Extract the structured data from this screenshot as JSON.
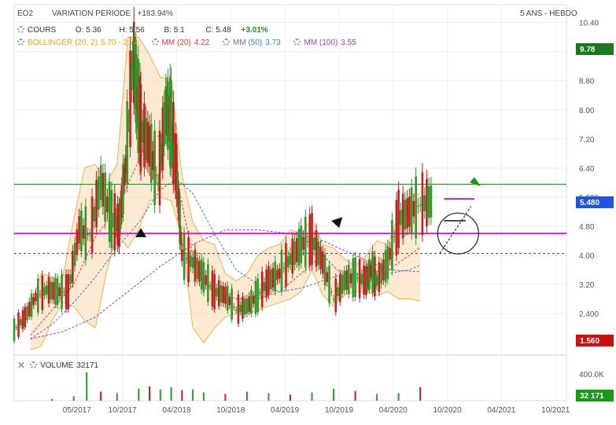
{
  "header": {
    "symbol": "EO2",
    "variation_label": "VARIATION PERIODE : +183.94%",
    "period_label": "5 ANS - HEBDO"
  },
  "legend": {
    "cours": {
      "label": "COURS",
      "open": "O: 5.36",
      "high": "H: 5.56",
      "low": "B: 5.1",
      "close": "C: 5.48",
      "change": "+3.01%"
    },
    "bollinger": {
      "label": "BOLLINGER (20, 2)",
      "values": "5.70 - 2.74",
      "color": "#f0a030"
    },
    "mm20": {
      "label": "MM (20)",
      "value": "4.22",
      "color": "#e04040"
    },
    "mm50": {
      "label": "MM (50)",
      "value": "3.73",
      "color": "#3b7fd0"
    },
    "mm100": {
      "label": "MM (100)",
      "value": "3.55",
      "color": "#a040b0"
    }
  },
  "volume": {
    "label": "VOLUME",
    "value": "32171",
    "axis_label": "400.0K",
    "badge": "32 171"
  },
  "badges": {
    "top": {
      "value": "9.78",
      "color": "#1a7a1a"
    },
    "last": {
      "value": "5.480",
      "color": "#2255dd"
    },
    "bottom": {
      "value": "1.560",
      "color": "#cc1111"
    }
  },
  "chart_data": {
    "type": "candlestick",
    "y_ticks": [
      "10.40",
      "9.60",
      "8.80",
      "8.00",
      "7.20",
      "6.40",
      "5.600",
      "4.80",
      "4.00",
      "3.20",
      "2.400"
    ],
    "y_tick_values": [
      10.4,
      9.6,
      8.8,
      8.0,
      7.2,
      6.4,
      5.6,
      4.8,
      4.0,
      3.2,
      2.4
    ],
    "ylim": [
      1.3,
      10.5
    ],
    "x_ticks": [
      "05/2017",
      "10/2017",
      "04/2018",
      "10/2018",
      "04/2019",
      "10/2019",
      "04/2020",
      "10/2020",
      "04/2021",
      "10/2021"
    ],
    "x_tick_values": [
      2017.33,
      2017.75,
      2018.25,
      2018.75,
      2019.25,
      2019.75,
      2020.25,
      2020.75,
      2021.25,
      2021.75
    ],
    "xlim": [
      2016.75,
      2021.85
    ],
    "close": {
      "x": [
        2016.75,
        2016.85,
        2016.95,
        2017.05,
        2017.15,
        2017.25,
        2017.35,
        2017.45,
        2017.55,
        2017.65,
        2017.72,
        2017.78,
        2017.85,
        2017.88,
        2017.92,
        2018.0,
        2018.08,
        2018.15,
        2018.2,
        2018.25,
        2018.3,
        2018.4,
        2018.5,
        2018.6,
        2018.7,
        2018.8,
        2018.9,
        2019.0,
        2019.1,
        2019.2,
        2019.3,
        2019.4,
        2019.5,
        2019.6,
        2019.7,
        2019.8,
        2019.9,
        2020.0,
        2020.05,
        2020.1,
        2020.2,
        2020.3,
        2020.4,
        2020.5,
        2020.6,
        2020.7,
        2020.75,
        2020.8,
        2020.85,
        2020.9,
        2020.95
      ],
      "y": [
        1.95,
        2.3,
        2.85,
        3.05,
        3.0,
        3.0,
        4.7,
        4.55,
        6.0,
        5.0,
        4.8,
        6.5,
        9.5,
        8.5,
        7.5,
        7.0,
        6.0,
        8.0,
        7.6,
        6.3,
        4.0,
        3.8,
        3.4,
        3.0,
        2.9,
        2.5,
        2.6,
        2.9,
        3.3,
        3.5,
        3.9,
        4.3,
        4.45,
        3.8,
        2.8,
        3.3,
        3.4,
        3.3,
        3.6,
        3.3,
        3.8,
        5.0,
        5.2,
        5.4,
        5.48,
        5.48,
        5.48,
        5.48,
        5.48,
        5.48,
        5.48
      ]
    },
    "bollinger_upper": {
      "x": [
        2016.9,
        2017.0,
        2017.1,
        2017.2,
        2017.3,
        2017.4,
        2017.5,
        2017.6,
        2017.7,
        2017.8,
        2017.9,
        2018.0,
        2018.1,
        2018.2,
        2018.3,
        2018.4,
        2018.5,
        2018.6,
        2018.7,
        2018.8,
        2018.9,
        2019.0,
        2019.1,
        2019.2,
        2019.3,
        2019.4,
        2019.5,
        2019.6,
        2019.7,
        2019.8,
        2019.9,
        2020.0,
        2020.1,
        2020.2,
        2020.3,
        2020.4,
        2020.5
      ],
      "y": [
        2.6,
        3.5,
        3.4,
        3.4,
        5.0,
        6.4,
        6.5,
        6.0,
        6.5,
        10.0,
        10.0,
        9.5,
        8.9,
        8.8,
        6.2,
        4.9,
        4.4,
        4.3,
        3.5,
        3.3,
        3.5,
        4.0,
        4.2,
        4.3,
        4.7,
        4.6,
        5.0,
        4.3,
        4.2,
        3.9,
        3.7,
        4.0,
        4.4,
        4.3,
        5.1,
        5.6,
        5.7
      ]
    },
    "bollinger_lower": {
      "x": [
        2016.9,
        2017.0,
        2017.1,
        2017.2,
        2017.3,
        2017.4,
        2017.5,
        2017.6,
        2017.7,
        2017.8,
        2017.9,
        2018.0,
        2018.1,
        2018.2,
        2018.3,
        2018.4,
        2018.5,
        2018.6,
        2018.7,
        2018.8,
        2018.9,
        2019.0,
        2019.1,
        2019.2,
        2019.3,
        2019.4,
        2019.5,
        2019.6,
        2019.7,
        2019.8,
        2019.9,
        2020.0,
        2020.1,
        2020.2,
        2020.3,
        2020.4,
        2020.5
      ],
      "y": [
        1.4,
        1.5,
        2.2,
        2.7,
        2.6,
        2.2,
        2.0,
        3.5,
        4.6,
        4.2,
        4.7,
        5.5,
        5.6,
        5.5,
        4.5,
        2.0,
        1.6,
        2.0,
        2.3,
        2.4,
        2.4,
        2.5,
        2.6,
        2.7,
        2.8,
        3.0,
        3.6,
        2.9,
        2.6,
        2.9,
        3.0,
        3.0,
        2.9,
        3.0,
        2.8,
        2.8,
        2.74
      ]
    },
    "mm20": {
      "x": [
        2016.9,
        2017.1,
        2017.3,
        2017.5,
        2017.7,
        2017.9,
        2018.0,
        2018.1,
        2018.2,
        2018.3,
        2018.4,
        2018.5,
        2018.6,
        2018.8,
        2019.0,
        2019.2,
        2019.4,
        2019.6,
        2019.7,
        2019.8,
        2020.0,
        2020.2,
        2020.4,
        2020.5
      ],
      "y": [
        1.8,
        2.5,
        3.2,
        4.5,
        5.3,
        6.6,
        7.2,
        7.3,
        7.1,
        5.4,
        4.0,
        3.3,
        3.0,
        2.8,
        2.8,
        3.0,
        3.5,
        4.0,
        3.7,
        3.4,
        3.5,
        3.6,
        4.0,
        4.22
      ]
    },
    "mm50": {
      "x": [
        2016.9,
        2017.1,
        2017.3,
        2017.5,
        2017.7,
        2017.9,
        2018.1,
        2018.25,
        2018.4,
        2018.6,
        2018.8,
        2019.0,
        2019.2,
        2019.4,
        2019.6,
        2019.8,
        2020.0,
        2020.2,
        2020.4,
        2020.5
      ],
      "y": [
        1.7,
        2.1,
        2.7,
        3.4,
        4.2,
        4.9,
        5.8,
        6.1,
        5.7,
        4.6,
        3.6,
        3.2,
        3.0,
        3.1,
        3.3,
        3.5,
        3.5,
        3.5,
        3.6,
        3.73
      ]
    },
    "mm100": {
      "x": [
        2016.9,
        2017.2,
        2017.5,
        2017.8,
        2018.1,
        2018.4,
        2018.7,
        2019.0,
        2019.3,
        2019.6,
        2019.9,
        2020.2,
        2020.5
      ],
      "y": [
        1.7,
        1.9,
        2.3,
        3.0,
        3.7,
        4.3,
        4.7,
        4.7,
        4.6,
        4.4,
        4.0,
        3.6,
        3.55
      ]
    },
    "horizontal_lines": [
      {
        "y": 5.95,
        "color": "#1a7a1a",
        "style": "solid"
      },
      {
        "y": 4.6,
        "color": "#cc22cc",
        "style": "solid"
      },
      {
        "y": 4.05,
        "color": "#444444",
        "style": "dashed"
      }
    ],
    "volume": {
      "x": [
        2017.1,
        2017.3,
        2017.42,
        2017.55,
        2017.7,
        2017.9,
        2018.0,
        2018.1,
        2018.2,
        2018.3,
        2018.4,
        2018.5,
        2018.7,
        2018.9,
        2019.1,
        2019.3,
        2019.5,
        2019.7,
        2019.9,
        2020.1,
        2020.3,
        2020.5
      ],
      "y": [
        20000,
        60000,
        380000,
        120000,
        100000,
        160000,
        190000,
        150000,
        180000,
        140000,
        150000,
        110000,
        90000,
        120000,
        100000,
        80000,
        110000,
        160000,
        130000,
        90000,
        100000,
        180000
      ]
    }
  }
}
